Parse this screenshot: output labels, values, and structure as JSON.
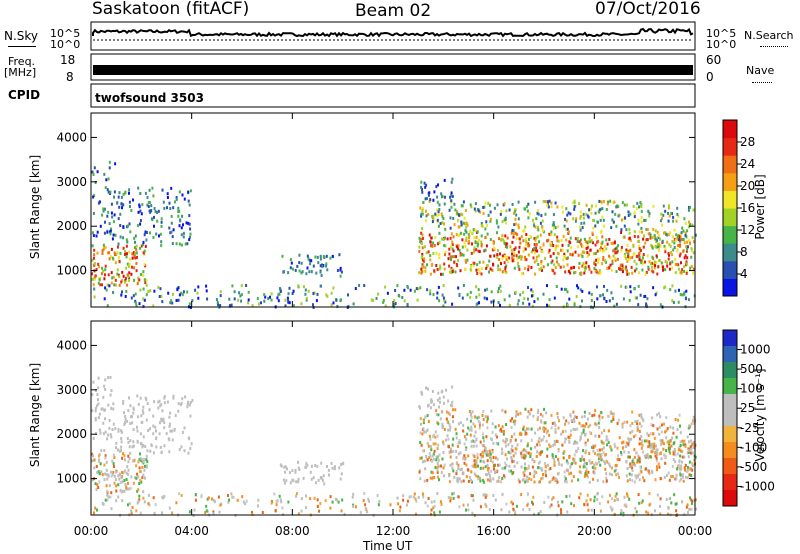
{
  "header": {
    "station": "Saskatoon (fitACF)",
    "beam": "Beam 02",
    "date": "07/Oct/2016"
  },
  "strip_labels": {
    "nsky": "N.Sky",
    "nsky_top": "10^5",
    "nsky_bottom": "10^0",
    "nsearch": "N.Search",
    "nsearch_top": "10^5",
    "nsearch_bottom": "10^0",
    "freq_line1": "Freq.",
    "freq_line2": "[MHz]",
    "freq_top": "18",
    "freq_bottom": "8",
    "nave": "Nave",
    "nave_top": "60",
    "nave_bottom": "0",
    "cpid": "CPID",
    "cpid_value": "twofsound 3503"
  },
  "chart_data": [
    {
      "type": "heatmap",
      "name": "power",
      "ylabel": "Slant Range [km]",
      "ylim": [
        180,
        4550
      ],
      "yticks": [
        "1000",
        "2000",
        "3000",
        "4000"
      ],
      "colorbar_label": "Power [dB]",
      "colorbar_ticks": [
        "4",
        "8",
        "12",
        "16",
        "20",
        "24",
        "28"
      ],
      "colorbar_colors": [
        "#0a14e6",
        "#2850b0",
        "#3c8c8c",
        "#46b446",
        "#a0d228",
        "#f0e628",
        "#f5a014",
        "#f06e14",
        "#e62814",
        "#dc0a0a"
      ]
    },
    {
      "type": "heatmap",
      "name": "velocity",
      "ylabel": "Slant Range [km]",
      "ylim": [
        180,
        4550
      ],
      "yticks": [
        "1000",
        "2000",
        "3000",
        "4000"
      ],
      "colorbar_label": "Velocity [m s⁻¹]",
      "colorbar_ticks": [
        "1000",
        "500",
        "100",
        "25",
        "-25",
        "-100",
        "-500",
        "-1000"
      ],
      "colorbar_colors": [
        "#1e28c8",
        "#2e64b4",
        "#2e8c64",
        "#46b446",
        "#bebebe",
        "#bebebe",
        "#f0b43c",
        "#f58c1e",
        "#f05a14",
        "#e62814",
        "#dc0a0a"
      ],
      "xlabel": "Time UT",
      "xticks": [
        "00:00",
        "04:00",
        "08:00",
        "12:00",
        "16:00",
        "20:00",
        "00:00"
      ]
    }
  ]
}
